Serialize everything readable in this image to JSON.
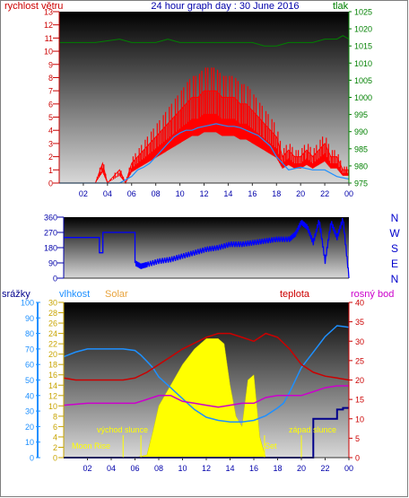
{
  "header": {
    "title": "24 hour graph day : 30 June 2016"
  },
  "x_ticks": [
    "02",
    "04",
    "06",
    "08",
    "10",
    "12",
    "14",
    "16",
    "18",
    "20",
    "22",
    "00"
  ],
  "wind_chart": {
    "left_label": "rychlost větru",
    "right_label": "tlak",
    "left_ticks": [
      "0",
      "1",
      "2",
      "3",
      "4",
      "5",
      "6",
      "7",
      "8",
      "9",
      "10",
      "11",
      "12",
      "13"
    ],
    "right_ticks": [
      "975",
      "980",
      "985",
      "990",
      "995",
      "1000",
      "1005",
      "1010",
      "1015",
      "1020",
      "1025"
    ],
    "colors": {
      "gust": "#ff0000",
      "speed": "#1e90ff",
      "pressure": "#008000"
    }
  },
  "direction_chart": {
    "left_ticks": [
      "0",
      "90",
      "180",
      "270",
      "360"
    ],
    "compass": [
      "N",
      "W",
      "S",
      "E",
      "N"
    ],
    "color": "#0000ff"
  },
  "bottom_chart": {
    "labels": {
      "rain": "srážky",
      "humidity": "vlhkost",
      "solar": "Solar",
      "temp": "teplota",
      "dew": "rosný bod"
    },
    "rain_ticks": [
      "0",
      "10",
      "20",
      "30",
      "40",
      "50",
      "60",
      "70",
      "80",
      "90",
      "100"
    ],
    "inner_ticks": [
      "0",
      "2",
      "4",
      "6",
      "8",
      "10",
      "12",
      "14",
      "16",
      "18",
      "20",
      "22",
      "24",
      "26",
      "28",
      "30"
    ],
    "right_ticks": [
      "0",
      "5",
      "10",
      "15",
      "20",
      "25",
      "30",
      "35",
      "40"
    ],
    "annotations": {
      "moon_rise": "Moon Rise",
      "sunrise": "východ slunce",
      "moon_set": "Moon Set",
      "sunset": "západ slunce"
    },
    "colors": {
      "rain": "#00008b",
      "humidity": "#1e90ff",
      "solar": "#ffff00",
      "temp": "#cc0000",
      "dew": "#cc00cc"
    }
  },
  "chart_data": [
    {
      "type": "line",
      "title": "24 hour graph day : 30 June 2016",
      "x_unit": "hour",
      "xlim": [
        0,
        24
      ],
      "series": [
        {
          "name": "rychlost větru",
          "axis": "left",
          "ylim": [
            0,
            13
          ],
          "x": [
            0,
            3,
            3.6,
            4,
            5,
            5.5,
            6,
            6.5,
            7,
            7.5,
            8,
            8.5,
            9,
            9.5,
            10,
            10.5,
            11,
            11.5,
            12,
            12.5,
            13,
            13.5,
            14,
            14.5,
            15,
            15.5,
            16,
            16.5,
            17,
            17.5,
            18,
            18.5,
            19,
            19.5,
            20,
            20.5,
            21,
            21.5,
            22,
            22.5,
            23,
            23.5,
            24
          ],
          "y": [
            0,
            0,
            1.5,
            0,
            1,
            0,
            1.5,
            2,
            2.5,
            3,
            3.5,
            4,
            4.5,
            5,
            5.5,
            6,
            6.5,
            6.5,
            7,
            7,
            7,
            6.5,
            6.5,
            6.5,
            6,
            6,
            5.5,
            5,
            4.5,
            4,
            3.5,
            2,
            2.5,
            2,
            2,
            2.5,
            2,
            2.5,
            3,
            2,
            2,
            1,
            1
          ]
        },
        {
          "name": "rychlost větru",
          "axis": "left",
          "ylim": [
            0,
            13
          ],
          "x": [
            0,
            5,
            6,
            6.5,
            7,
            7.5,
            8,
            8.5,
            9,
            9.5,
            10,
            10.5,
            11,
            11.5,
            12,
            12.5,
            13,
            13.5,
            14,
            14.5,
            15,
            15.5,
            16,
            16.5,
            17,
            17.5,
            18,
            19,
            20,
            21,
            22,
            23,
            24
          ],
          "y": [
            0,
            0,
            0.5,
            1,
            1.2,
            1.5,
            2,
            2.5,
            3,
            3.5,
            3.8,
            4,
            4,
            4.2,
            4.3,
            4.4,
            4.5,
            4.4,
            4.3,
            4.3,
            4.2,
            4,
            3.8,
            3.6,
            3.2,
            2.8,
            2,
            1,
            1.2,
            1,
            1,
            0.5,
            0.3
          ]
        },
        {
          "name": "tlak",
          "axis": "right",
          "ylim": [
            975,
            1025
          ],
          "x": [
            0,
            3,
            5,
            6,
            8,
            9,
            10,
            11,
            12,
            14,
            16,
            17,
            18,
            19,
            20,
            21,
            22,
            23,
            23.5,
            24
          ],
          "y": [
            1016,
            1016,
            1017,
            1016,
            1016,
            1017,
            1016,
            1016,
            1016,
            1016,
            1016,
            1015,
            1015,
            1016,
            1016,
            1016,
            1017,
            1017,
            1018,
            1017
          ]
        }
      ]
    },
    {
      "type": "line",
      "x_unit": "hour",
      "xlim": [
        0,
        24
      ],
      "ylim": [
        0,
        360
      ],
      "series": [
        {
          "x": [
            0,
            1,
            2,
            2.6,
            3,
            3.3,
            4,
            4.8,
            5.3,
            5.8,
            6,
            6.5,
            7,
            8,
            9,
            10,
            11,
            12,
            13,
            14,
            15,
            16,
            17,
            18,
            19,
            19.5,
            20,
            20.5,
            21,
            21.5,
            22,
            22.5,
            23,
            23.5,
            24
          ],
          "y": [
            240,
            240,
            240,
            240,
            150,
            270,
            270,
            270,
            270,
            270,
            90,
            70,
            80,
            100,
            110,
            130,
            150,
            170,
            180,
            200,
            200,
            210,
            220,
            230,
            230,
            260,
            330,
            300,
            210,
            340,
            100,
            330,
            240,
            350,
            10
          ]
        }
      ]
    },
    {
      "type": "line",
      "x_unit": "hour",
      "xlim": [
        0,
        24
      ],
      "series": [
        {
          "name": "vlhkost",
          "axis": "rain_scale",
          "ylim": [
            0,
            100
          ],
          "x": [
            0,
            1,
            2,
            3,
            4,
            5,
            6,
            6.5,
            7,
            7.5,
            8,
            9,
            10,
            11,
            12,
            13,
            14,
            15,
            16,
            17,
            18,
            18.5,
            19,
            20,
            21,
            22,
            23,
            24
          ],
          "y": [
            65,
            68,
            70,
            70,
            70,
            70,
            69,
            66,
            62,
            58,
            52,
            45,
            38,
            31,
            26,
            24,
            23,
            23,
            24,
            27,
            32,
            35,
            42,
            58,
            68,
            78,
            85,
            84
          ]
        },
        {
          "name": "teplota",
          "axis": "right",
          "ylim": [
            0,
            40
          ],
          "x": [
            0,
            1,
            2,
            3,
            4,
            5,
            6,
            7,
            8,
            9,
            10,
            11,
            12,
            13,
            14,
            15,
            16,
            17,
            18,
            19,
            20,
            21,
            22,
            23,
            24
          ],
          "y": [
            20.5,
            20,
            20,
            20,
            20,
            20,
            20.5,
            22,
            24,
            26,
            28,
            29.5,
            31,
            32,
            32,
            31,
            30,
            32,
            31,
            28,
            24,
            22,
            21,
            20.5,
            20
          ]
        },
        {
          "name": "rosný bod",
          "axis": "right",
          "ylim": [
            0,
            40
          ],
          "x": [
            0,
            2,
            4,
            6,
            7,
            8,
            9,
            10,
            11,
            12,
            13,
            14,
            15,
            16,
            17,
            18,
            19,
            20,
            21,
            22,
            23,
            24
          ],
          "y": [
            13.5,
            14,
            14,
            14,
            15,
            16,
            16,
            14.5,
            14,
            13.5,
            13,
            13.5,
            14,
            14,
            15.5,
            16,
            16,
            16,
            17,
            18,
            18.5,
            18.5
          ]
        },
        {
          "name": "Solar",
          "axis": "inner",
          "ylim": [
            0,
            30
          ],
          "x": [
            4,
            5,
            6,
            7,
            7.5,
            8,
            9,
            10,
            11,
            12,
            12.5,
            13,
            13.5,
            14,
            14.5,
            15,
            15.5,
            16,
            16.5,
            17,
            17.5,
            18
          ],
          "y": [
            0,
            0,
            0,
            0.5,
            5,
            10,
            14,
            18,
            21,
            23,
            23,
            23,
            22,
            14,
            8,
            6,
            15,
            16,
            4,
            0,
            0,
            0
          ]
        },
        {
          "name": "srážky",
          "axis": "rain_scale",
          "ylim": [
            0,
            100
          ],
          "x": [
            0,
            20,
            20.5,
            21,
            22,
            23,
            23.5,
            24
          ],
          "y": [
            0,
            0,
            0,
            25,
            25,
            31,
            32,
            32
          ]
        }
      ]
    }
  ]
}
